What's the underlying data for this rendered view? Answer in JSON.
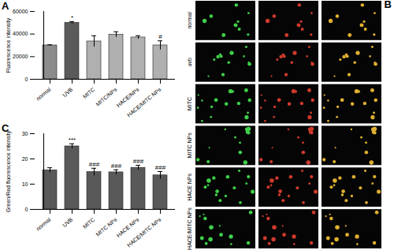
{
  "chart_data": [
    {
      "type": "bar",
      "title": "A",
      "y_label": "Fluorescence intensity",
      "categories": [
        "normal",
        "UVB",
        "MITC",
        "MITC/NPs",
        "HACE/NPs",
        "HACE/MITC NPs"
      ],
      "values": [
        30000,
        50000,
        33500,
        39500,
        37000,
        30000
      ],
      "errors": [
        500,
        1000,
        5000,
        2500,
        1500,
        4000
      ],
      "colors": [
        "#8c8c8c",
        "#5a5a5a",
        "#b0b0b0",
        "#b0b0b0",
        "#b0b0b0",
        "#b0b0b0"
      ],
      "ylim": [
        0,
        60000
      ],
      "yticks": [
        0,
        20000,
        40000,
        60000
      ],
      "annotations": [
        {
          "category": "UVB",
          "text": "*"
        },
        {
          "category": "HACE/MITC NPs",
          "text": "#"
        }
      ]
    },
    {
      "type": "bar",
      "title": "C",
      "y_label": "Green/Red fluorescence intensity",
      "categories": [
        "normal",
        "UVB",
        "MITC",
        "MITC NPs",
        "HACE NPs",
        "HACE/MITC NPs"
      ],
      "values": [
        15.5,
        25,
        14.8,
        14.7,
        16.5,
        13.5
      ],
      "errors": [
        1,
        1,
        1.5,
        1,
        1,
        1.5
      ],
      "color": "#595959",
      "ylim": [
        0,
        30
      ],
      "yticks": [
        0,
        10,
        20,
        30
      ],
      "annotations": [
        {
          "category": "UVB",
          "text": "***"
        },
        {
          "category": "MITC",
          "text": "###"
        },
        {
          "category": "MITC NPs",
          "text": "###"
        },
        {
          "category": "HACE NPs",
          "text": "###"
        },
        {
          "category": "HACE/MITC NPs",
          "text": "###"
        }
      ]
    }
  ],
  "panel_b": {
    "title": "B",
    "rows": [
      "normal",
      "uvb",
      "MITC",
      "MITC NPs",
      "HACE NPs",
      "HACE/MITC NPs"
    ]
  }
}
